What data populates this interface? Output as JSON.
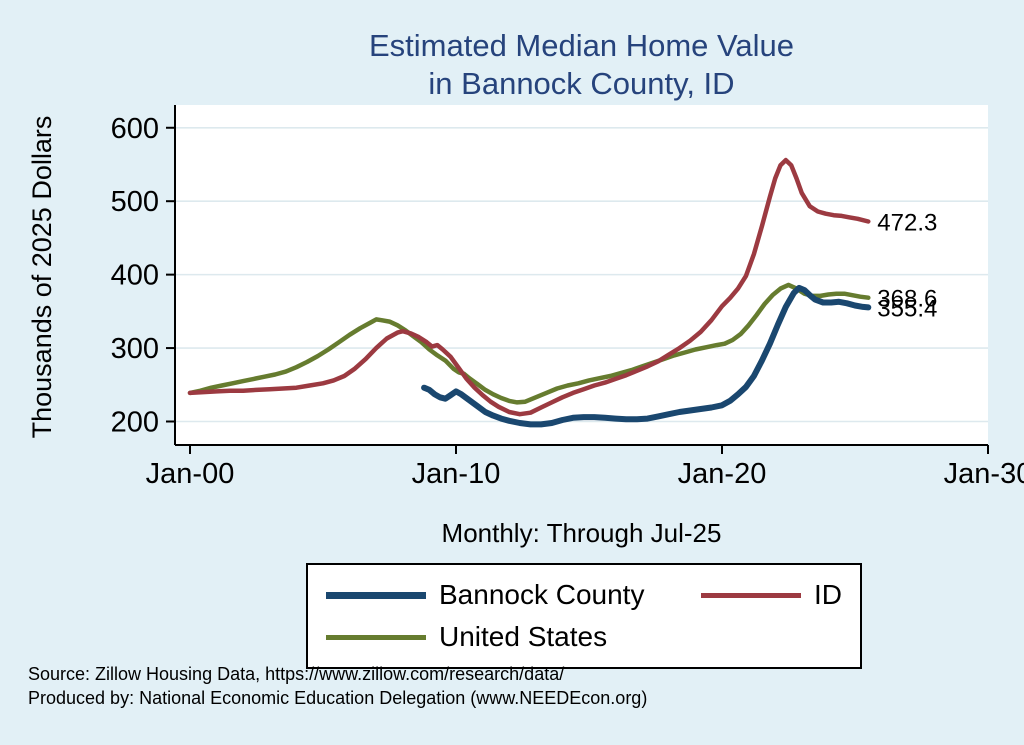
{
  "title": {
    "line1": "Estimated Median Home Value",
    "line2": "in Bannock County, ID"
  },
  "axes": {
    "y_title": "Thousands of 2025 Dollars",
    "x_note": "Monthly: Through Jul-25"
  },
  "legend": {
    "items": [
      {
        "label": "Bannock County",
        "color": "#1a476f"
      },
      {
        "label": "ID",
        "color": "#9c3a41"
      },
      {
        "label": "United States",
        "color": "#667c2f"
      }
    ]
  },
  "source": {
    "line1": "Source: Zillow Housing Data, https://www.zillow.com/research/data/",
    "line2": "Produced by: National Economic Education Delegation (www.NEEDEcon.org)"
  },
  "colors": {
    "background": "#e2f0f6",
    "plot_background": "#ffffff",
    "grid": "#dde9ee",
    "title": "#26437c",
    "axis": "#000000",
    "bannock": "#1a476f",
    "id": "#9c3a41",
    "united_states": "#667c2f"
  },
  "chart_data": {
    "type": "line",
    "title": "Estimated Median Home Value in Bannock County, ID",
    "xlabel": "Monthly: Through Jul-25",
    "ylabel": "Thousands of 2025 Dollars",
    "xlim": [
      2000,
      2030
    ],
    "ylim": [
      168,
      631
    ],
    "grid": true,
    "legend_position": "below",
    "x_ticks": [
      {
        "value": 2000,
        "label": "Jan-00"
      },
      {
        "value": 2010,
        "label": "Jan-10"
      },
      {
        "value": 2020,
        "label": "Jan-20"
      },
      {
        "value": 2030,
        "label": "Jan-30"
      }
    ],
    "y_ticks": [
      200,
      300,
      400,
      500,
      600
    ],
    "series": [
      {
        "name": "United States",
        "color": "#667c2f",
        "width": 4.5,
        "points": [
          [
            2000,
            239
          ],
          [
            2000.4,
            242
          ],
          [
            2000.8,
            246
          ],
          [
            2001.2,
            249
          ],
          [
            2001.6,
            252
          ],
          [
            2002,
            255
          ],
          [
            2002.4,
            258
          ],
          [
            2002.8,
            261
          ],
          [
            2003.2,
            264
          ],
          [
            2003.6,
            268
          ],
          [
            2004,
            274
          ],
          [
            2004.4,
            281
          ],
          [
            2004.8,
            289
          ],
          [
            2005.2,
            298
          ],
          [
            2005.6,
            308
          ],
          [
            2006,
            318
          ],
          [
            2006.4,
            327
          ],
          [
            2006.8,
            335
          ],
          [
            2007,
            339
          ],
          [
            2007.2,
            338
          ],
          [
            2007.5,
            336
          ],
          [
            2007.8,
            331
          ],
          [
            2008.1,
            324
          ],
          [
            2008.4,
            316
          ],
          [
            2008.7,
            308
          ],
          [
            2009,
            298
          ],
          [
            2009.3,
            290
          ],
          [
            2009.6,
            283
          ],
          [
            2009.9,
            272
          ],
          [
            2010.1,
            267
          ],
          [
            2010.3,
            265
          ],
          [
            2010.5,
            259
          ],
          [
            2010.8,
            251
          ],
          [
            2011.1,
            243
          ],
          [
            2011.4,
            237
          ],
          [
            2011.7,
            232
          ],
          [
            2012,
            228
          ],
          [
            2012.3,
            226
          ],
          [
            2012.6,
            227
          ],
          [
            2013,
            233
          ],
          [
            2013.4,
            239
          ],
          [
            2013.8,
            245
          ],
          [
            2014.2,
            249
          ],
          [
            2014.6,
            252
          ],
          [
            2015,
            256
          ],
          [
            2015.4,
            259
          ],
          [
            2015.8,
            262
          ],
          [
            2016.2,
            266
          ],
          [
            2016.6,
            270
          ],
          [
            2017,
            275
          ],
          [
            2017.4,
            280
          ],
          [
            2017.8,
            285
          ],
          [
            2018.2,
            290
          ],
          [
            2018.6,
            294
          ],
          [
            2019,
            298
          ],
          [
            2019.4,
            301
          ],
          [
            2019.8,
            304
          ],
          [
            2020.1,
            306
          ],
          [
            2020.4,
            311
          ],
          [
            2020.7,
            319
          ],
          [
            2021,
            331
          ],
          [
            2021.3,
            345
          ],
          [
            2021.6,
            360
          ],
          [
            2021.9,
            372
          ],
          [
            2022.2,
            381
          ],
          [
            2022.5,
            386
          ],
          [
            2022.8,
            381
          ],
          [
            2023.1,
            374
          ],
          [
            2023.4,
            371
          ],
          [
            2023.7,
            371
          ],
          [
            2024,
            373
          ],
          [
            2024.3,
            374
          ],
          [
            2024.6,
            374
          ],
          [
            2024.9,
            372
          ],
          [
            2025.2,
            370
          ],
          [
            2025.5,
            368.6
          ]
        ]
      },
      {
        "name": "ID",
        "color": "#9c3a41",
        "width": 4.5,
        "points": [
          [
            2000,
            239
          ],
          [
            2000.5,
            240
          ],
          [
            2001,
            241
          ],
          [
            2001.5,
            242
          ],
          [
            2002,
            242
          ],
          [
            2002.5,
            243
          ],
          [
            2003,
            244
          ],
          [
            2003.5,
            245
          ],
          [
            2004,
            246
          ],
          [
            2004.5,
            249
          ],
          [
            2005,
            252
          ],
          [
            2005.4,
            256
          ],
          [
            2005.8,
            262
          ],
          [
            2006.2,
            272
          ],
          [
            2006.6,
            285
          ],
          [
            2007,
            300
          ],
          [
            2007.4,
            313
          ],
          [
            2007.8,
            321
          ],
          [
            2008,
            323
          ],
          [
            2008.3,
            320
          ],
          [
            2008.6,
            315
          ],
          [
            2008.9,
            308
          ],
          [
            2009.1,
            302
          ],
          [
            2009.3,
            304
          ],
          [
            2009.5,
            298
          ],
          [
            2009.8,
            288
          ],
          [
            2010.1,
            273
          ],
          [
            2010.4,
            258
          ],
          [
            2010.7,
            246
          ],
          [
            2011,
            236
          ],
          [
            2011.3,
            227
          ],
          [
            2011.6,
            220
          ],
          [
            2012,
            213
          ],
          [
            2012.4,
            210
          ],
          [
            2012.8,
            212
          ],
          [
            2013.2,
            219
          ],
          [
            2013.6,
            226
          ],
          [
            2014,
            233
          ],
          [
            2014.4,
            239
          ],
          [
            2014.8,
            244
          ],
          [
            2015.2,
            249
          ],
          [
            2015.6,
            253
          ],
          [
            2016,
            258
          ],
          [
            2016.4,
            263
          ],
          [
            2016.8,
            269
          ],
          [
            2017.2,
            275
          ],
          [
            2017.6,
            282
          ],
          [
            2018,
            291
          ],
          [
            2018.4,
            300
          ],
          [
            2018.8,
            310
          ],
          [
            2019.2,
            322
          ],
          [
            2019.6,
            338
          ],
          [
            2020,
            357
          ],
          [
            2020.3,
            368
          ],
          [
            2020.6,
            381
          ],
          [
            2020.9,
            398
          ],
          [
            2021.2,
            428
          ],
          [
            2021.5,
            466
          ],
          [
            2021.8,
            506
          ],
          [
            2022,
            531
          ],
          [
            2022.2,
            549
          ],
          [
            2022.4,
            556
          ],
          [
            2022.6,
            549
          ],
          [
            2022.8,
            531
          ],
          [
            2023,
            511
          ],
          [
            2023.3,
            493
          ],
          [
            2023.6,
            486
          ],
          [
            2023.9,
            483
          ],
          [
            2024.2,
            481
          ],
          [
            2024.5,
            480
          ],
          [
            2024.8,
            478
          ],
          [
            2025.1,
            476
          ],
          [
            2025.5,
            472.3
          ]
        ]
      },
      {
        "name": "Bannock County",
        "color": "#1a476f",
        "width": 6,
        "points": [
          [
            2008.8,
            246
          ],
          [
            2009,
            243
          ],
          [
            2009.2,
            237
          ],
          [
            2009.4,
            233
          ],
          [
            2009.6,
            231
          ],
          [
            2009.8,
            236
          ],
          [
            2010,
            241
          ],
          [
            2010.2,
            237
          ],
          [
            2010.5,
            229
          ],
          [
            2010.8,
            221
          ],
          [
            2011.1,
            213
          ],
          [
            2011.4,
            208
          ],
          [
            2011.7,
            204
          ],
          [
            2012,
            201
          ],
          [
            2012.4,
            198
          ],
          [
            2012.8,
            196
          ],
          [
            2013.2,
            196
          ],
          [
            2013.6,
            198
          ],
          [
            2014,
            202
          ],
          [
            2014.4,
            205
          ],
          [
            2014.8,
            206
          ],
          [
            2015.2,
            206
          ],
          [
            2015.6,
            205
          ],
          [
            2016,
            204
          ],
          [
            2016.4,
            203
          ],
          [
            2016.8,
            203
          ],
          [
            2017.2,
            204
          ],
          [
            2017.6,
            207
          ],
          [
            2018,
            210
          ],
          [
            2018.4,
            213
          ],
          [
            2018.8,
            215
          ],
          [
            2019.2,
            217
          ],
          [
            2019.6,
            219
          ],
          [
            2020,
            222
          ],
          [
            2020.3,
            228
          ],
          [
            2020.6,
            237
          ],
          [
            2020.9,
            247
          ],
          [
            2021.2,
            262
          ],
          [
            2021.5,
            283
          ],
          [
            2021.8,
            306
          ],
          [
            2022.1,
            332
          ],
          [
            2022.4,
            356
          ],
          [
            2022.7,
            375
          ],
          [
            2022.9,
            382
          ],
          [
            2023.1,
            379
          ],
          [
            2023.3,
            372
          ],
          [
            2023.5,
            366
          ],
          [
            2023.8,
            362
          ],
          [
            2024.1,
            362
          ],
          [
            2024.4,
            363
          ],
          [
            2024.7,
            361
          ],
          [
            2025,
            358
          ],
          [
            2025.3,
            356
          ],
          [
            2025.5,
            355.4
          ]
        ]
      }
    ],
    "end_labels": [
      {
        "series": "ID",
        "text": "472.3"
      },
      {
        "series": "United States",
        "text": "368.6"
      },
      {
        "series": "Bannock County",
        "text": "355.4"
      }
    ]
  }
}
